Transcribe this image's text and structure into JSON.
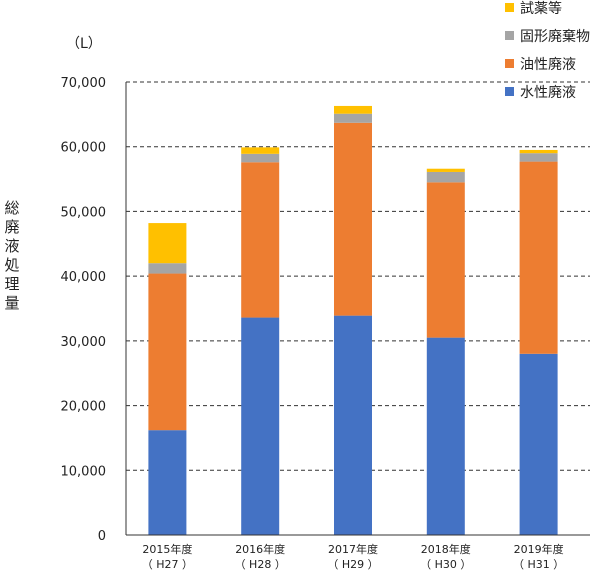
{
  "chart_data": {
    "type": "bar",
    "stacked": true,
    "unit_label": "（L）",
    "ylabel": "総廃液処理量",
    "xlabel": "",
    "title": "",
    "ylim": [
      0,
      70000
    ],
    "yticks": [
      0,
      10000,
      20000,
      30000,
      40000,
      50000,
      60000,
      70000
    ],
    "ytick_labels": [
      "0",
      "10,000",
      "20,000",
      "30,000",
      "40,000",
      "50,000",
      "60,000",
      "70,000"
    ],
    "grid": "horizontal-dashed",
    "legend_position": "top-right",
    "categories": [
      [
        "2015年度",
        "（ H27 ）"
      ],
      [
        "2016年度",
        "（ H28 ）"
      ],
      [
        "2017年度",
        "（ H29 ）"
      ],
      [
        "2018年度",
        "（ H30 ）"
      ],
      [
        "2019年度",
        "（ H31 ）"
      ]
    ],
    "series": [
      {
        "name": "水性廃液",
        "color": "#4472C4",
        "values": [
          16200,
          33600,
          33900,
          30500,
          28000
        ]
      },
      {
        "name": "油性廃液",
        "color": "#ED7D31",
        "values": [
          24200,
          24000,
          29800,
          24000,
          29700
        ]
      },
      {
        "name": "固形廃棄物",
        "color": "#A5A5A5",
        "values": [
          1600,
          1300,
          1400,
          1600,
          1300
        ]
      },
      {
        "name": "試薬等",
        "color": "#FFC000",
        "values": [
          6200,
          1000,
          1200,
          500,
          500
        ]
      }
    ],
    "legend_order": [
      "試薬等",
      "固形廃棄物",
      "油性廃液",
      "水性廃液"
    ]
  }
}
